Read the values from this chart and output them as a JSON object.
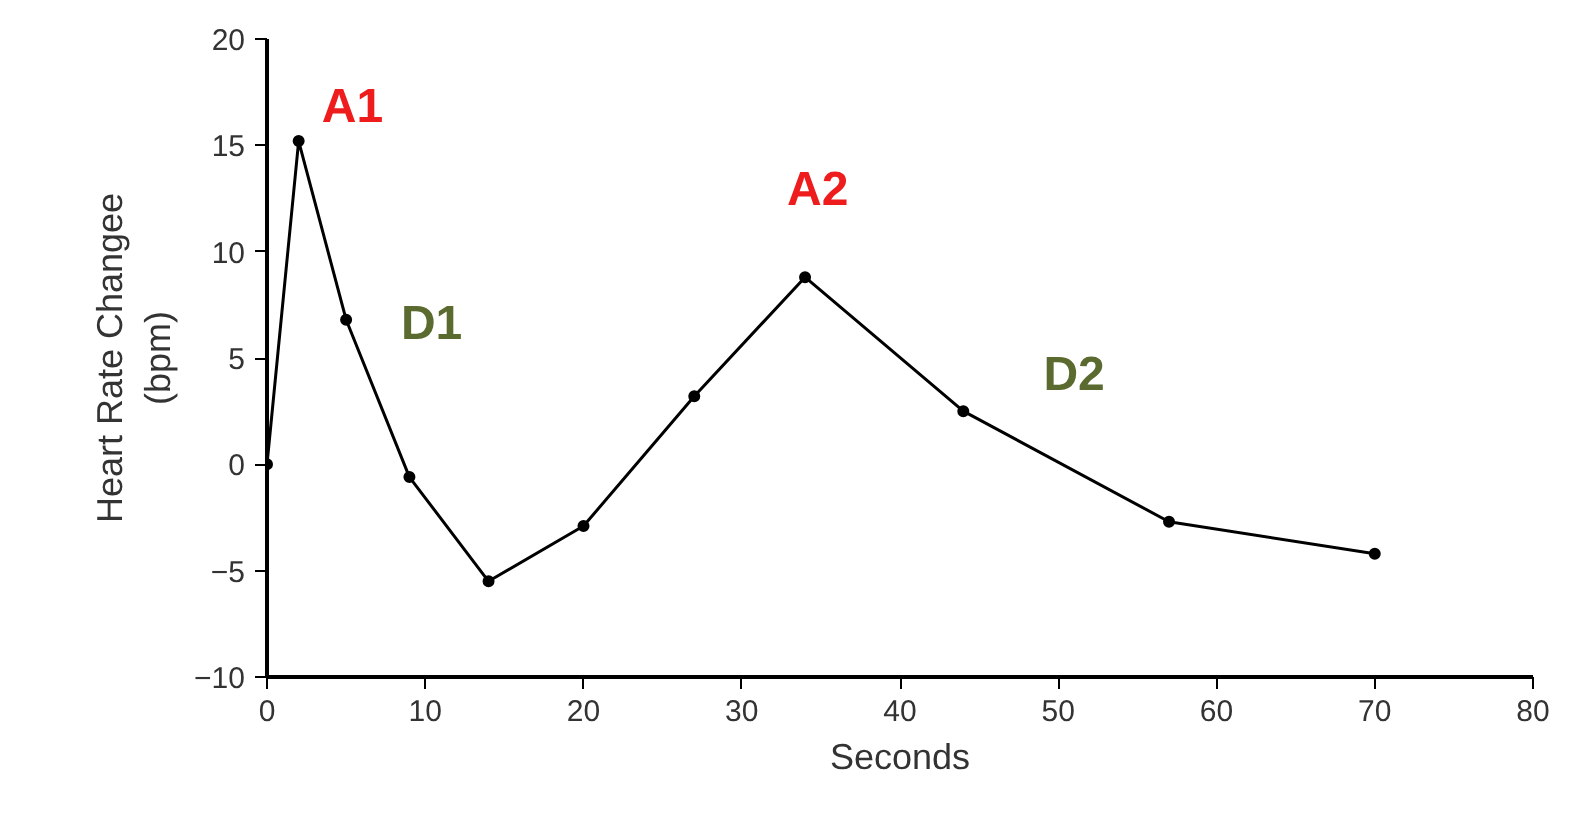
{
  "chart_data": {
    "type": "line",
    "xlabel": "Seconds",
    "ylabel": "Heart Rate Changee\n(bpm)",
    "x": [
      0,
      2,
      5,
      9,
      14,
      20,
      27,
      34,
      44,
      57,
      70
    ],
    "values": [
      0,
      15.2,
      6.8,
      -0.6,
      -5.5,
      -2.9,
      3.2,
      8.8,
      2.5,
      -2.7,
      -4.2
    ],
    "color": "#000000",
    "marker": "circle",
    "line_style": "solid",
    "xlim": [
      0,
      80
    ],
    "xticks": [
      0,
      10,
      20,
      30,
      40,
      50,
      60,
      70,
      80
    ],
    "ylim": [
      -10,
      20
    ],
    "yticks": [
      -10,
      -5,
      0,
      5,
      10,
      15,
      20
    ],
    "annotations": [
      "A1",
      "D1",
      "A2",
      "D2"
    ]
  }
}
